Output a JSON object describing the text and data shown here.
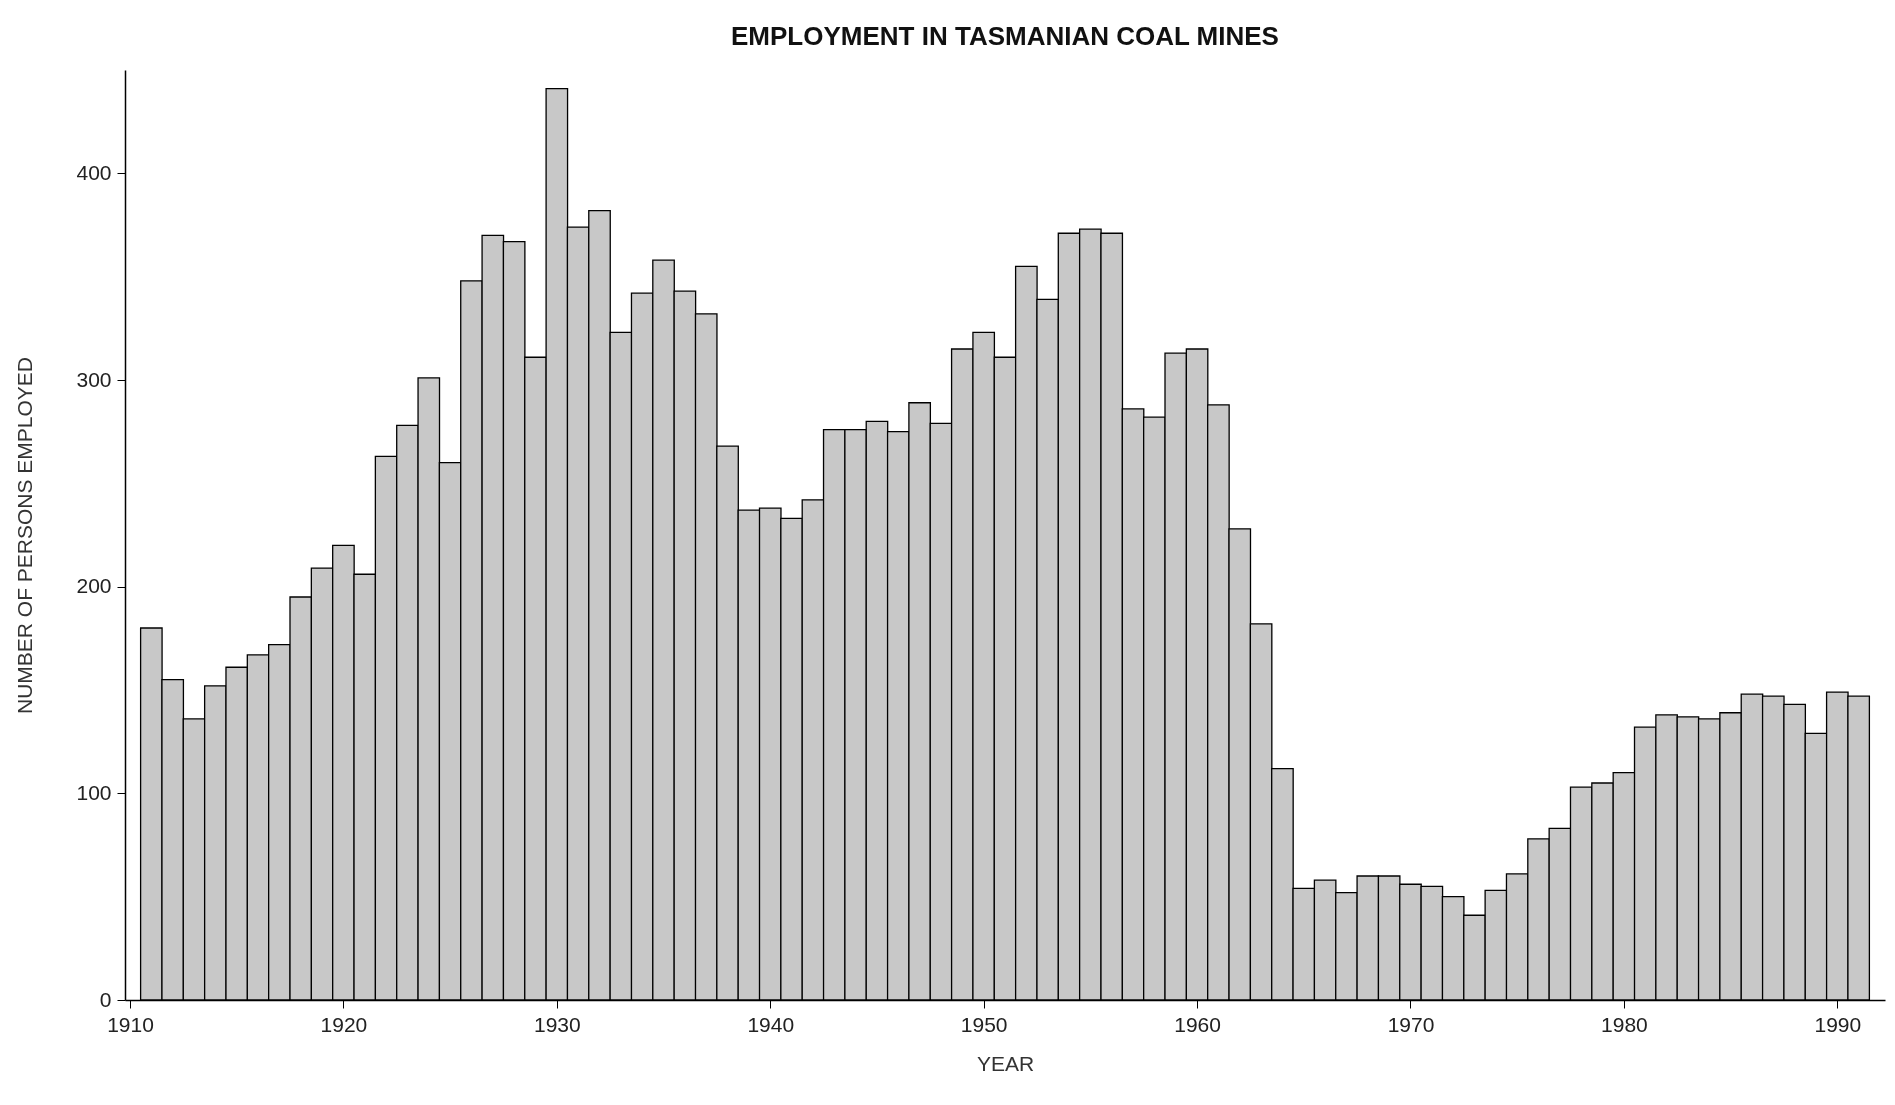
{
  "chart_data": {
    "type": "bar",
    "title": "EMPLOYMENT IN TASMANIAN COAL MINES",
    "xlabel": "YEAR",
    "ylabel": "NUMBER OF PERSONS EMPLOYED",
    "x": [
      1911,
      1912,
      1913,
      1914,
      1915,
      1916,
      1917,
      1918,
      1919,
      1920,
      1921,
      1922,
      1923,
      1924,
      1925,
      1926,
      1927,
      1928,
      1929,
      1930,
      1931,
      1932,
      1933,
      1934,
      1935,
      1936,
      1937,
      1938,
      1939,
      1940,
      1941,
      1942,
      1943,
      1944,
      1945,
      1946,
      1947,
      1948,
      1949,
      1950,
      1951,
      1952,
      1953,
      1954,
      1955,
      1956,
      1957,
      1958,
      1959,
      1960,
      1961,
      1962,
      1963,
      1964,
      1965,
      1966,
      1967,
      1968,
      1969,
      1970,
      1971,
      1972,
      1973,
      1974,
      1975,
      1976,
      1977,
      1978,
      1979,
      1980,
      1981,
      1982,
      1983,
      1984,
      1985,
      1986,
      1987,
      1988,
      1989,
      1990,
      1991
    ],
    "values": [
      180,
      155,
      136,
      152,
      161,
      167,
      172,
      195,
      209,
      220,
      206,
      263,
      278,
      301,
      260,
      348,
      370,
      367,
      311,
      441,
      374,
      382,
      323,
      342,
      358,
      343,
      332,
      268,
      237,
      238,
      233,
      242,
      276,
      276,
      280,
      275,
      289,
      279,
      315,
      323,
      311,
      355,
      339,
      371,
      373,
      371,
      286,
      282,
      313,
      315,
      288,
      228,
      182,
      112,
      54,
      58,
      52,
      60,
      60,
      56,
      55,
      50,
      41,
      53,
      61,
      78,
      83,
      103,
      105,
      110,
      132,
      138,
      137,
      136,
      139,
      148,
      147,
      143,
      129,
      149,
      147
    ],
    "color": "#c8c8c8",
    "xlim": [
      1910,
      1992
    ],
    "xticks": [
      1910,
      1920,
      1930,
      1940,
      1950,
      1960,
      1970,
      1980,
      1990
    ],
    "ylim": [
      0,
      450
    ],
    "yticks": [
      0,
      100,
      200,
      300,
      400
    ],
    "grid": false
  }
}
